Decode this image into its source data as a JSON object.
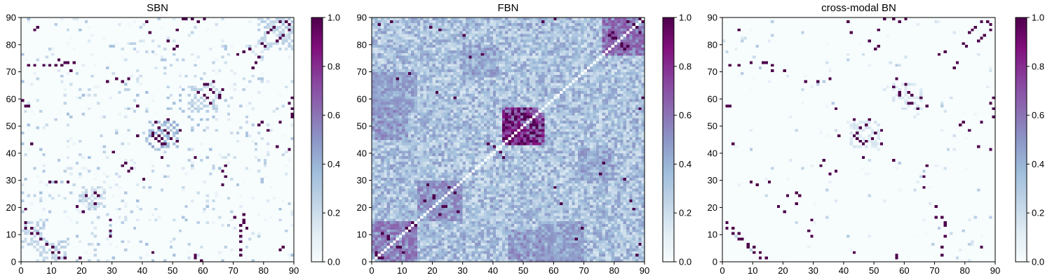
{
  "figure": {
    "colormap": "BuPu",
    "colormap_stops": [
      "#f7fcfd",
      "#e0ecf4",
      "#bfd3e6",
      "#9ebcda",
      "#8c96c6",
      "#8c6bb1",
      "#88419d",
      "#810f7c",
      "#4d004b"
    ]
  },
  "chart_data": [
    {
      "type": "heatmap",
      "title": "SBN",
      "xlim": [
        0,
        90
      ],
      "ylim": [
        0,
        90
      ],
      "xticks": [
        "0",
        "10",
        "20",
        "30",
        "40",
        "50",
        "60",
        "70",
        "80",
        "90"
      ],
      "yticks": [
        "0",
        "10",
        "20",
        "30",
        "40",
        "50",
        "60",
        "70",
        "80",
        "90"
      ],
      "colorbar": {
        "range": [
          0.0,
          1.0
        ],
        "ticks": [
          "0.0",
          "0.2",
          "0.4",
          "0.6",
          "0.8",
          "1.0"
        ]
      },
      "matrix_size": 90,
      "density": "sparse",
      "diagonal": 0.0,
      "blocks": [
        {
          "rows": [
            42,
            52
          ],
          "cols": [
            42,
            52
          ],
          "level": 0.55
        },
        {
          "rows": [
            55,
            65
          ],
          "cols": [
            55,
            65
          ],
          "level": 0.35
        },
        {
          "rows": [
            20,
            28
          ],
          "cols": [
            20,
            28
          ],
          "level": 0.3
        },
        {
          "rows": [
            5,
            15
          ],
          "cols": [
            0,
            8
          ],
          "level": 0.35
        },
        {
          "rows": [
            78,
            90
          ],
          "cols": [
            80,
            90
          ],
          "level": 0.35
        }
      ],
      "strong_cells": [
        [
          72,
          2
        ],
        [
          72,
          4
        ],
        [
          72,
          7
        ],
        [
          72,
          9
        ],
        [
          72,
          11
        ],
        [
          72,
          13
        ],
        [
          73,
          15
        ],
        [
          73,
          17
        ],
        [
          66,
          28
        ],
        [
          67,
          31
        ],
        [
          66,
          33
        ],
        [
          67,
          35
        ],
        [
          29,
          9
        ],
        [
          29,
          11
        ],
        [
          29,
          15
        ],
        [
          46,
          43
        ],
        [
          45,
          44
        ],
        [
          46,
          45
        ],
        [
          43,
          47
        ],
        [
          47,
          48
        ],
        [
          45,
          49
        ],
        [
          44,
          51
        ],
        [
          52,
          48
        ],
        [
          61,
          60
        ],
        [
          62,
          63
        ],
        [
          58,
          62
        ],
        [
          65,
          61
        ],
        [
          60,
          65
        ],
        [
          63,
          66
        ],
        [
          84,
          81
        ],
        [
          86,
          83
        ],
        [
          82,
          85
        ],
        [
          88,
          87
        ],
        [
          80,
          79
        ],
        [
          85,
          88
        ],
        [
          14,
          1
        ],
        [
          12,
          3
        ],
        [
          10,
          5
        ],
        [
          8,
          6
        ],
        [
          3,
          10
        ],
        [
          1,
          12
        ],
        [
          89,
          56
        ],
        [
          88,
          58
        ],
        [
          57,
          1
        ],
        [
          41,
          88
        ],
        [
          53,
          89
        ],
        [
          51,
          85
        ],
        [
          38,
          46
        ],
        [
          38,
          57
        ],
        [
          20,
          18
        ],
        [
          19,
          1
        ],
        [
          24,
          21
        ],
        [
          25,
          24
        ],
        [
          30,
          40
        ],
        [
          35,
          33
        ],
        [
          36,
          34
        ],
        [
          76,
          71
        ],
        [
          77,
          73
        ],
        [
          78,
          75
        ],
        [
          73,
          77
        ],
        [
          16,
          70
        ],
        [
          14,
          73
        ],
        [
          12,
          74
        ],
        [
          4,
          85
        ],
        [
          5,
          86
        ],
        [
          50,
          78
        ],
        [
          51,
          79
        ],
        [
          48,
          81
        ],
        [
          42,
          84
        ],
        [
          60,
          89
        ],
        [
          54,
          89
        ],
        [
          3,
          43
        ],
        [
          2,
          57
        ],
        [
          0,
          59
        ]
      ]
    },
    {
      "type": "heatmap",
      "title": "FBN",
      "xlim": [
        0,
        90
      ],
      "ylim": [
        0,
        90
      ],
      "xticks": [
        "0",
        "10",
        "20",
        "30",
        "40",
        "50",
        "60",
        "70",
        "80",
        "90"
      ],
      "yticks": [
        "0",
        "10",
        "20",
        "30",
        "40",
        "50",
        "60",
        "70",
        "80",
        "90"
      ],
      "colorbar": {
        "range": [
          0.0,
          1.0
        ],
        "ticks": [
          "0.0",
          "0.2",
          "0.4",
          "0.6",
          "0.8",
          "1.0"
        ]
      },
      "matrix_size": 90,
      "density": "dense",
      "diagonal": 0.0,
      "blocks": [
        {
          "rows": [
            43,
            55
          ],
          "cols": [
            43,
            57
          ],
          "level": 0.85
        },
        {
          "rows": [
            0,
            15
          ],
          "cols": [
            0,
            15
          ],
          "level": 0.55
        },
        {
          "rows": [
            15,
            30
          ],
          "cols": [
            15,
            30
          ],
          "level": 0.5
        },
        {
          "rows": [
            76,
            90
          ],
          "cols": [
            76,
            90
          ],
          "level": 0.6
        },
        {
          "rows": [
            55,
            70
          ],
          "cols": [
            0,
            15
          ],
          "level": 0.45
        },
        {
          "rows": [
            0,
            15
          ],
          "cols": [
            55,
            70
          ],
          "level": 0.45
        },
        {
          "rows": [
            45,
            57
          ],
          "cols": [
            0,
            12
          ],
          "level": 0.5
        },
        {
          "rows": [
            30,
            42
          ],
          "cols": [
            68,
            80
          ],
          "level": 0.45
        }
      ],
      "strong_cells": [
        [
          83,
          78
        ],
        [
          82,
          79
        ],
        [
          80,
          82
        ],
        [
          79,
          84
        ],
        [
          86,
          87
        ],
        [
          88,
          89
        ],
        [
          84,
          88
        ],
        [
          48,
          43
        ],
        [
          49,
          44
        ],
        [
          47,
          47
        ],
        [
          52,
          50
        ],
        [
          51,
          53
        ],
        [
          46,
          54
        ],
        [
          44,
          52
        ],
        [
          10,
          3
        ],
        [
          8,
          5
        ],
        [
          5,
          9
        ],
        [
          12,
          11
        ],
        [
          14,
          13
        ],
        [
          3,
          1
        ],
        [
          1,
          2
        ],
        [
          22,
          17
        ],
        [
          24,
          20
        ],
        [
          20,
          23
        ],
        [
          27,
          25
        ],
        [
          18,
          28
        ],
        [
          69,
          12
        ],
        [
          67,
          8
        ],
        [
          41,
          41
        ],
        [
          40,
          42
        ],
        [
          38,
          43
        ],
        [
          60,
          27
        ],
        [
          62,
          21
        ],
        [
          86,
          19
        ],
        [
          85,
          22
        ],
        [
          83,
          30
        ],
        [
          60,
          89
        ],
        [
          56,
          88
        ],
        [
          32,
          75
        ],
        [
          36,
          76
        ],
        [
          6,
          88
        ],
        [
          2,
          87
        ]
      ]
    },
    {
      "type": "heatmap",
      "title": "cross-modal BN",
      "xlim": [
        0,
        90
      ],
      "ylim": [
        0,
        90
      ],
      "xticks": [
        "0",
        "10",
        "20",
        "30",
        "40",
        "50",
        "60",
        "70",
        "80",
        "90"
      ],
      "yticks": [
        "0",
        "10",
        "20",
        "30",
        "40",
        "50",
        "60",
        "70",
        "80",
        "90"
      ],
      "colorbar": {
        "range": [
          0.0,
          1.0
        ],
        "ticks": [
          "0.0",
          "0.2",
          "0.4",
          "0.6",
          "0.8",
          "1.0"
        ]
      },
      "matrix_size": 90,
      "density": "very-sparse",
      "diagonal": 0.0,
      "blocks": [
        {
          "rows": [
            42,
            52
          ],
          "cols": [
            42,
            52
          ],
          "level": 0.2
        },
        {
          "rows": [
            56,
            66
          ],
          "cols": [
            56,
            66
          ],
          "level": 0.2
        }
      ],
      "strong_cells": [
        [
          72,
          2
        ],
        [
          72,
          5
        ],
        [
          73,
          9
        ],
        [
          73,
          13
        ],
        [
          72,
          16
        ],
        [
          70,
          20
        ],
        [
          66,
          27
        ],
        [
          66,
          31
        ],
        [
          67,
          35
        ],
        [
          46,
          43
        ],
        [
          45,
          44
        ],
        [
          46,
          46
        ],
        [
          44,
          47
        ],
        [
          45,
          49
        ],
        [
          47,
          50
        ],
        [
          43,
          52
        ],
        [
          52,
          48
        ],
        [
          61,
          58
        ],
        [
          62,
          61
        ],
        [
          58,
          62
        ],
        [
          65,
          60
        ],
        [
          60,
          65
        ],
        [
          63,
          63
        ],
        [
          56,
          64
        ],
        [
          67,
          57
        ],
        [
          84,
          81
        ],
        [
          86,
          83
        ],
        [
          82,
          85
        ],
        [
          88,
          87
        ],
        [
          80,
          79
        ],
        [
          85,
          88
        ],
        [
          77,
          73
        ],
        [
          76,
          71
        ],
        [
          14,
          1
        ],
        [
          12,
          3
        ],
        [
          10,
          5
        ],
        [
          8,
          6
        ],
        [
          3,
          10
        ],
        [
          1,
          12
        ],
        [
          5,
          8
        ],
        [
          20,
          18
        ],
        [
          24,
          21
        ],
        [
          25,
          24
        ],
        [
          28,
          11
        ],
        [
          29,
          9
        ],
        [
          29,
          15
        ],
        [
          37,
          33
        ],
        [
          35,
          32
        ],
        [
          89,
          56
        ],
        [
          88,
          58
        ],
        [
          57,
          1
        ],
        [
          41,
          88
        ],
        [
          53,
          89
        ],
        [
          51,
          85
        ],
        [
          38,
          46
        ],
        [
          37,
          56
        ],
        [
          50,
          78
        ],
        [
          51,
          79
        ],
        [
          48,
          81
        ],
        [
          42,
          84
        ],
        [
          60,
          89
        ],
        [
          3,
          43
        ],
        [
          2,
          57
        ],
        [
          5,
          85
        ],
        [
          16,
          70
        ],
        [
          14,
          73
        ]
      ]
    }
  ]
}
